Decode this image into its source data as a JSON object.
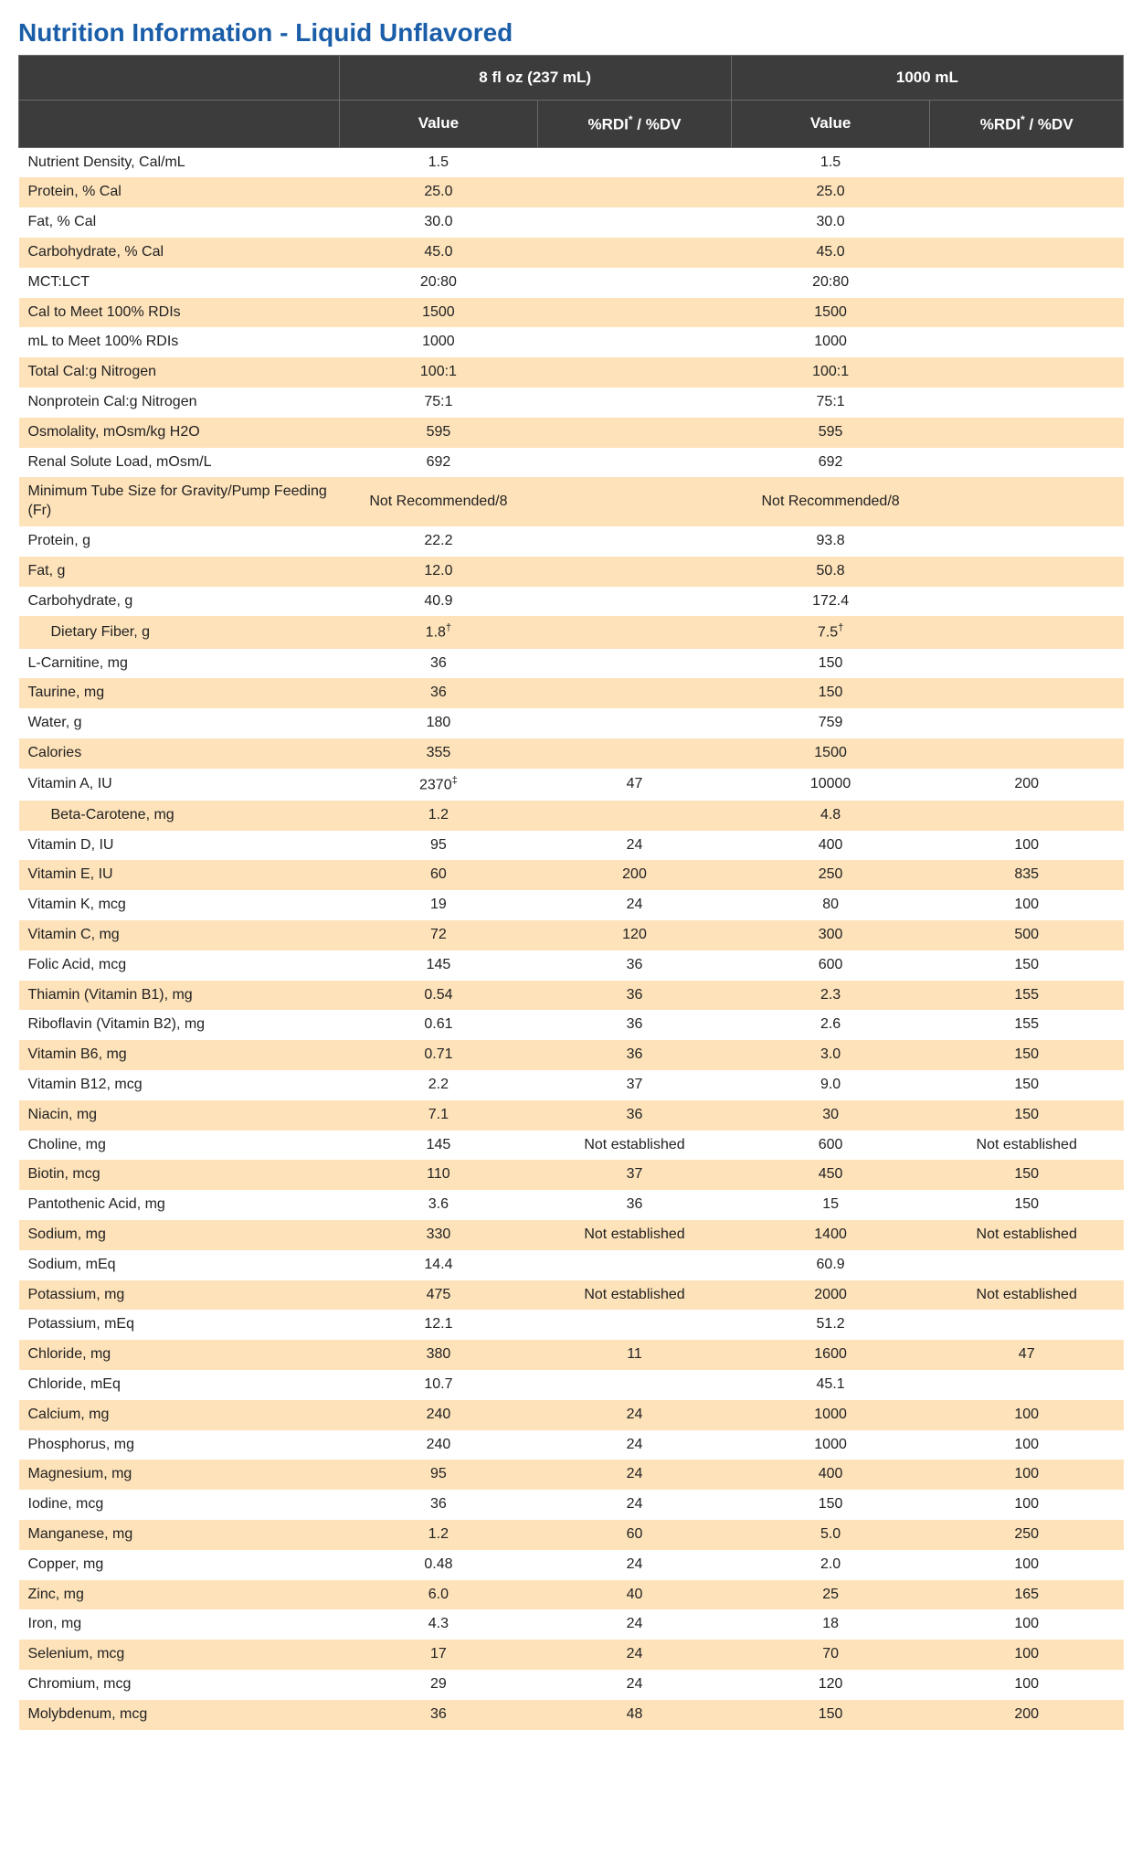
{
  "title": "Nutrition Information - Liquid Unflavored",
  "colors": {
    "title": "#1a5da8",
    "header_bg": "#3c3c3c",
    "header_border": "#6a6a6a",
    "header_text": "#ffffff",
    "row_even_bg": "#ffffff",
    "row_odd_bg": "#fde2ba",
    "text": "#222222"
  },
  "header": {
    "blank": "",
    "serving1": "8 fl oz (237 mL)",
    "serving2": "1000 mL",
    "value": "Value",
    "rdi_dv_pre": "%RDI",
    "rdi_dv_sup": "*",
    "rdi_dv_post": " / %DV"
  },
  "rows": [
    {
      "label": "Nutrient Density, Cal/mL",
      "v1": "1.5",
      "d1": "",
      "v2": "1.5",
      "d2": ""
    },
    {
      "label": "Protein, % Cal",
      "v1": "25.0",
      "d1": "",
      "v2": "25.0",
      "d2": ""
    },
    {
      "label": "Fat, % Cal",
      "v1": "30.0",
      "d1": "",
      "v2": "30.0",
      "d2": ""
    },
    {
      "label": "Carbohydrate, % Cal",
      "v1": "45.0",
      "d1": "",
      "v2": "45.0",
      "d2": ""
    },
    {
      "label": "MCT:LCT",
      "v1": "20:80",
      "d1": "",
      "v2": "20:80",
      "d2": ""
    },
    {
      "label": "Cal to Meet 100% RDIs",
      "v1": "1500",
      "d1": "",
      "v2": "1500",
      "d2": ""
    },
    {
      "label": "mL to Meet 100% RDIs",
      "v1": "1000",
      "d1": "",
      "v2": "1000",
      "d2": ""
    },
    {
      "label": "Total Cal:g Nitrogen",
      "v1": "100:1",
      "d1": "",
      "v2": "100:1",
      "d2": ""
    },
    {
      "label": "Nonprotein Cal:g Nitrogen",
      "v1": "75:1",
      "d1": "",
      "v2": "75:1",
      "d2": ""
    },
    {
      "label": "Osmolality, mOsm/kg H2O",
      "v1": "595",
      "d1": "",
      "v2": "595",
      "d2": ""
    },
    {
      "label": "Renal Solute Load, mOsm/L",
      "v1": "692",
      "d1": "",
      "v2": "692",
      "d2": ""
    },
    {
      "label": "Minimum Tube Size for Gravity/Pump Feeding (Fr)",
      "v1": "Not Recommended/8",
      "d1": "",
      "v2": "Not Recommended/8",
      "d2": ""
    },
    {
      "label": "Protein, g",
      "v1": "22.2",
      "d1": "",
      "v2": "93.8",
      "d2": ""
    },
    {
      "label": "Fat, g",
      "v1": "12.0",
      "d1": "",
      "v2": "50.8",
      "d2": ""
    },
    {
      "label": "Carbohydrate, g",
      "v1": "40.9",
      "d1": "",
      "v2": "172.4",
      "d2": ""
    },
    {
      "label": "Dietary Fiber, g",
      "indent": true,
      "v1": "1.8",
      "v1_sup": "†",
      "d1": "",
      "v2": "7.5",
      "v2_sup": "†",
      "d2": ""
    },
    {
      "label": "L-Carnitine, mg",
      "v1": "36",
      "d1": "",
      "v2": "150",
      "d2": ""
    },
    {
      "label": "Taurine, mg",
      "v1": "36",
      "d1": "",
      "v2": "150",
      "d2": ""
    },
    {
      "label": "Water, g",
      "v1": "180",
      "d1": "",
      "v2": "759",
      "d2": ""
    },
    {
      "label": "Calories",
      "v1": "355",
      "d1": "",
      "v2": "1500",
      "d2": ""
    },
    {
      "label": "Vitamin A, IU",
      "v1": "2370",
      "v1_sup": "‡",
      "d1": "47",
      "v2": "10000",
      "d2": "200"
    },
    {
      "label": "Beta-Carotene, mg",
      "indent": true,
      "v1": "1.2",
      "d1": "",
      "v2": "4.8",
      "d2": ""
    },
    {
      "label": "Vitamin D, IU",
      "v1": "95",
      "d1": "24",
      "v2": "400",
      "d2": "100"
    },
    {
      "label": "Vitamin E, IU",
      "v1": "60",
      "d1": "200",
      "v2": "250",
      "d2": "835"
    },
    {
      "label": "Vitamin K, mcg",
      "v1": "19",
      "d1": "24",
      "v2": "80",
      "d2": "100"
    },
    {
      "label": "Vitamin C, mg",
      "v1": "72",
      "d1": "120",
      "v2": "300",
      "d2": "500"
    },
    {
      "label": "Folic Acid, mcg",
      "v1": "145",
      "d1": "36",
      "v2": "600",
      "d2": "150"
    },
    {
      "label": "Thiamin (Vitamin B1), mg",
      "v1": "0.54",
      "d1": "36",
      "v2": "2.3",
      "d2": "155"
    },
    {
      "label": "Riboflavin (Vitamin B2), mg",
      "v1": "0.61",
      "d1": "36",
      "v2": "2.6",
      "d2": "155"
    },
    {
      "label": "Vitamin B6, mg",
      "v1": "0.71",
      "d1": "36",
      "v2": "3.0",
      "d2": "150"
    },
    {
      "label": "Vitamin B12, mcg",
      "v1": "2.2",
      "d1": "37",
      "v2": "9.0",
      "d2": "150"
    },
    {
      "label": "Niacin, mg",
      "v1": "7.1",
      "d1": "36",
      "v2": "30",
      "d2": "150"
    },
    {
      "label": "Choline, mg",
      "v1": "145",
      "d1": "Not established",
      "v2": "600",
      "d2": "Not established"
    },
    {
      "label": "Biotin, mcg",
      "v1": "110",
      "d1": "37",
      "v2": "450",
      "d2": "150"
    },
    {
      "label": "Pantothenic Acid, mg",
      "v1": "3.6",
      "d1": "36",
      "v2": "15",
      "d2": "150"
    },
    {
      "label": "Sodium, mg",
      "v1": "330",
      "d1": "Not established",
      "v2": "1400",
      "d2": "Not established"
    },
    {
      "label": "Sodium, mEq",
      "v1": "14.4",
      "d1": "",
      "v2": "60.9",
      "d2": ""
    },
    {
      "label": "Potassium, mg",
      "v1": "475",
      "d1": "Not established",
      "v2": "2000",
      "d2": "Not established"
    },
    {
      "label": "Potassium, mEq",
      "v1": "12.1",
      "d1": "",
      "v2": "51.2",
      "d2": ""
    },
    {
      "label": "Chloride, mg",
      "v1": "380",
      "d1": "11",
      "v2": "1600",
      "d2": "47"
    },
    {
      "label": "Chloride, mEq",
      "v1": "10.7",
      "d1": "",
      "v2": "45.1",
      "d2": ""
    },
    {
      "label": "Calcium, mg",
      "v1": "240",
      "d1": "24",
      "v2": "1000",
      "d2": "100"
    },
    {
      "label": "Phosphorus, mg",
      "v1": "240",
      "d1": "24",
      "v2": "1000",
      "d2": "100"
    },
    {
      "label": "Magnesium, mg",
      "v1": "95",
      "d1": "24",
      "v2": "400",
      "d2": "100"
    },
    {
      "label": "Iodine, mcg",
      "v1": "36",
      "d1": "24",
      "v2": "150",
      "d2": "100"
    },
    {
      "label": "Manganese, mg",
      "v1": "1.2",
      "d1": "60",
      "v2": "5.0",
      "d2": "250"
    },
    {
      "label": "Copper, mg",
      "v1": "0.48",
      "d1": "24",
      "v2": "2.0",
      "d2": "100"
    },
    {
      "label": "Zinc, mg",
      "v1": "6.0",
      "d1": "40",
      "v2": "25",
      "d2": "165"
    },
    {
      "label": "Iron, mg",
      "v1": "4.3",
      "d1": "24",
      "v2": "18",
      "d2": "100"
    },
    {
      "label": "Selenium, mcg",
      "v1": "17",
      "d1": "24",
      "v2": "70",
      "d2": "100"
    },
    {
      "label": "Chromium, mcg",
      "v1": "29",
      "d1": "24",
      "v2": "120",
      "d2": "100"
    },
    {
      "label": "Molybdenum, mcg",
      "v1": "36",
      "d1": "48",
      "v2": "150",
      "d2": "200"
    }
  ]
}
